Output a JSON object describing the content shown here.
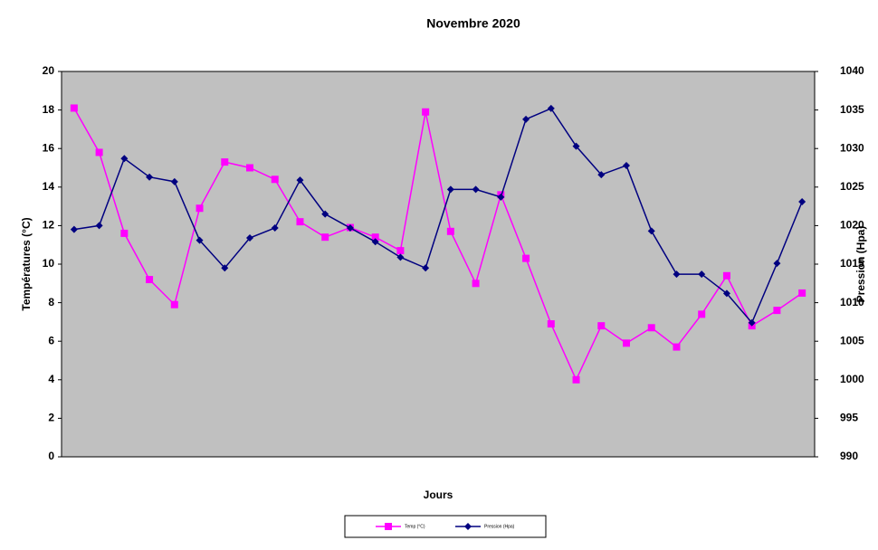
{
  "chart_data": {
    "type": "line",
    "title": "Novembre 2020",
    "x_label": "Jours",
    "y_label": "Températures (°C)",
    "y2_label": "Pression (Hpa)",
    "categories": [
      null,
      null,
      null,
      null,
      null,
      null,
      null,
      null,
      null,
      null,
      null,
      null,
      null,
      null,
      null,
      null,
      null,
      null,
      null,
      null,
      null,
      null,
      null,
      null,
      null,
      null,
      null,
      null,
      null,
      null
    ],
    "ylim": [
      0,
      20
    ],
    "yticks": [
      0,
      2,
      4,
      6,
      8,
      10,
      12,
      14,
      16,
      18,
      20
    ],
    "y2lim": [
      990,
      1040
    ],
    "y2ticks": [
      990,
      995,
      1000,
      1005,
      1010,
      1015,
      1020,
      1025,
      1030,
      1035,
      1040
    ],
    "grid": false,
    "legend": "bottom",
    "series": [
      {
        "name": "Temp (°C)",
        "color": "#ff00ff",
        "marker": "square",
        "values": [
          18.1,
          15.8,
          11.6,
          9.2,
          7.9,
          12.9,
          15.3,
          15.0,
          14.4,
          12.2,
          11.4,
          11.9,
          11.4,
          10.7,
          17.9,
          11.7,
          9.0,
          13.6,
          10.3,
          6.9,
          4.0,
          6.8,
          5.9,
          6.7,
          5.7,
          7.4,
          9.4,
          6.8,
          7.6,
          8.5
        ]
      },
      {
        "name": "Pression (Hpa)",
        "color": "#000080",
        "marker": "diamond",
        "axis": "y2",
        "values": [
          1019.5,
          1020,
          1028.7,
          1026.3,
          1025.7,
          1018.1,
          1014.5,
          1018.4,
          1019.7,
          1025.9,
          1021.5,
          1019.7,
          1017.9,
          1015.9,
          1014.5,
          1024.7,
          1024.7,
          1023.7,
          1033.8,
          1035.2,
          1030.3,
          1026.6,
          1027.8,
          1019.3,
          1013.7,
          1013.7,
          1011.2,
          1007.4,
          1015.1,
          1023.1
        ]
      }
    ]
  }
}
